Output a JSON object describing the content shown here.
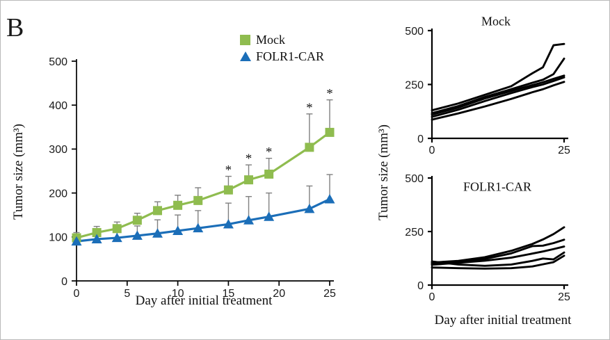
{
  "panel": {
    "label": "B"
  },
  "colors": {
    "mock_series": "#8FBC4F",
    "folr1_series": "#1B6EB8",
    "error_bar": "#808080",
    "individual_line": "#000000",
    "axis": "#000000",
    "tick_label": "#1a1a1a"
  },
  "legend": {
    "position": "top-right-of-left-chart",
    "items": [
      {
        "label": "Mock",
        "marker": "square",
        "color": "#8FBC4F"
      },
      {
        "label": "FOLR1-CAR",
        "marker": "triangle",
        "color": "#1B6EB8"
      }
    ]
  },
  "chart_data": [
    {
      "id": "mean-tumor-growth",
      "type": "line",
      "title": "",
      "xlabel": "Day after initial treatment",
      "ylabel": "Tumor size (mm³)",
      "xlim": [
        0,
        25
      ],
      "ylim": [
        0,
        500
      ],
      "xticks": [
        0,
        5,
        10,
        15,
        20,
        25
      ],
      "yticks": [
        0,
        100,
        200,
        300,
        400,
        500
      ],
      "grid": false,
      "x": [
        0,
        2,
        4,
        6,
        8,
        10,
        12,
        15,
        17,
        19,
        23,
        25
      ],
      "series": [
        {
          "name": "Mock",
          "marker": "square",
          "color": "#8FBC4F",
          "values": [
            98,
            110,
            119,
            138,
            160,
            172,
            183,
            207,
            230,
            243,
            304,
            338
          ],
          "errors_up": [
            12,
            14,
            15,
            16,
            20,
            23,
            29,
            31,
            34,
            36,
            76,
            74
          ]
        },
        {
          "name": "FOLR1-CAR",
          "marker": "triangle",
          "color": "#1B6EB8",
          "values": [
            90,
            95,
            98,
            103,
            108,
            114,
            120,
            129,
            138,
            146,
            164,
            186
          ],
          "errors_up": [
            6,
            13,
            15,
            22,
            31,
            36,
            40,
            48,
            54,
            54,
            52,
            56
          ]
        }
      ],
      "significance": {
        "symbol": "*",
        "series_index": 0,
        "days": [
          15,
          17,
          19,
          23,
          25
        ]
      }
    },
    {
      "id": "mock-individual-mice",
      "type": "line",
      "title": "Mock",
      "xlabel": "",
      "ylabel": "Tumor size (mm³)",
      "xlim": [
        0,
        25
      ],
      "ylim": [
        0,
        500
      ],
      "xticks": [
        0,
        25
      ],
      "yticks": [
        0,
        250,
        500
      ],
      "grid": false,
      "x": [
        0,
        5,
        10,
        15,
        19,
        21,
        23,
        25
      ],
      "series": [
        {
          "values": [
            130,
            162,
            202,
            242,
            302,
            330,
            432,
            438
          ]
        },
        {
          "values": [
            117,
            150,
            192,
            228,
            258,
            272,
            298,
            370
          ]
        },
        {
          "values": [
            110,
            143,
            185,
            220,
            247,
            260,
            276,
            291
          ]
        },
        {
          "values": [
            100,
            133,
            173,
            210,
            238,
            250,
            266,
            283
          ]
        },
        {
          "values": [
            87,
            116,
            148,
            183,
            214,
            228,
            246,
            262
          ]
        }
      ]
    },
    {
      "id": "folr1-car-individual-mice",
      "type": "line",
      "title": "FOLR1-CAR",
      "xlabel": "Day after initial treatment",
      "ylabel": "Tumor size (mm³)",
      "xlim": [
        0,
        25
      ],
      "ylim": [
        0,
        500
      ],
      "xticks": [
        0,
        25
      ],
      "yticks": [
        0,
        250,
        500
      ],
      "grid": false,
      "x": [
        0,
        5,
        10,
        15,
        19,
        21,
        23,
        25
      ],
      "series": [
        {
          "values": [
            105,
            113,
            130,
            160,
            192,
            213,
            238,
            270
          ]
        },
        {
          "values": [
            100,
            108,
            122,
            148,
            182,
            184,
            196,
            212
          ]
        },
        {
          "values": [
            95,
            104,
            114,
            128,
            147,
            157,
            168,
            180
          ]
        },
        {
          "values": [
            110,
            96,
            90,
            96,
            113,
            124,
            120,
            152
          ]
        },
        {
          "values": [
            82,
            79,
            77,
            79,
            87,
            97,
            107,
            137
          ]
        }
      ]
    }
  ]
}
